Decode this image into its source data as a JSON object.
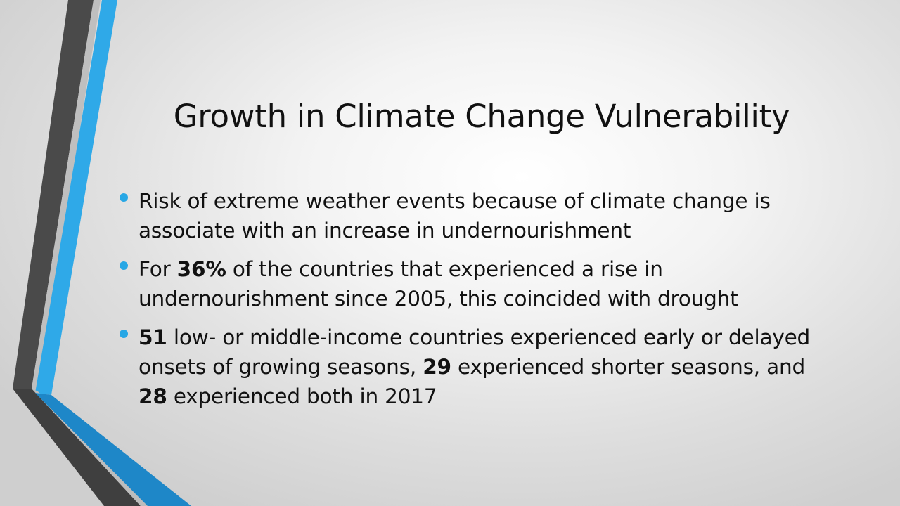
{
  "slide": {
    "title": "Growth in Climate Change Vulnerability",
    "accent_color": "#27a7e5",
    "bullets": [
      {
        "lines": [
          [
            "Risk of extreme weather events because of climate change is"
          ],
          [
            "associate with an increase in undernourishment"
          ]
        ]
      },
      {
        "line1_pre": "For ",
        "line1_bold": "36%",
        "line1_post": " of the countries that experienced a rise in",
        "line2": "undernourishment since 2005, this coincided with drought"
      },
      {
        "line1_bold": "51",
        "line1_post": " low- or middle-income countries experienced early or delayed",
        "line2_pre": "onsets of growing seasons, ",
        "line2_bold": "29",
        "line2_post": " experienced shorter seasons, and",
        "line3_bold": "28",
        "line3_post": " experienced both in 2017"
      }
    ]
  }
}
